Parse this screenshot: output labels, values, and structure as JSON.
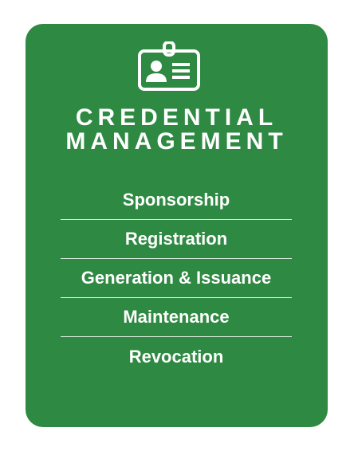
{
  "card": {
    "icon": "id-badge-icon",
    "title_line1": "CREDENTIAL",
    "title_line2": "MANAGEMENT",
    "background_color": "#2e8942",
    "items": [
      "Sponsorship",
      "Registration",
      "Generation & Issuance",
      "Maintenance",
      "Revocation"
    ]
  }
}
